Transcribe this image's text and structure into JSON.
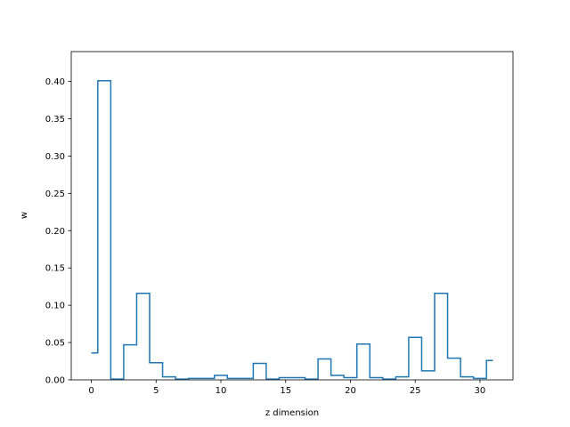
{
  "chart_data": {
    "type": "line",
    "step": "mid",
    "title": "",
    "xlabel": "z dimension",
    "ylabel": "w",
    "xlim": [
      -1.55,
      32.55
    ],
    "ylim": [
      0.0,
      0.44
    ],
    "xticks": [
      0,
      5,
      10,
      15,
      20,
      25,
      30
    ],
    "yticks": [
      0.0,
      0.05,
      0.1,
      0.15,
      0.2,
      0.25,
      0.3,
      0.35,
      0.4
    ],
    "ytick_labels": [
      "0.00",
      "0.05",
      "0.10",
      "0.15",
      "0.20",
      "0.25",
      "0.30",
      "0.35",
      "0.40"
    ],
    "grid": false,
    "color": "#1f77b4",
    "series": [
      {
        "x": [
          0,
          1,
          2,
          3,
          4,
          5,
          6,
          7,
          8,
          9,
          10,
          11,
          12,
          13,
          14,
          15,
          16,
          17,
          18,
          19,
          20,
          21,
          22,
          23,
          24,
          25,
          26,
          27,
          28,
          29,
          30,
          31
        ],
        "values": [
          0.036,
          0.401,
          0.001,
          0.047,
          0.116,
          0.023,
          0.004,
          0.001,
          0.002,
          0.002,
          0.006,
          0.002,
          0.002,
          0.022,
          0.001,
          0.003,
          0.003,
          0.001,
          0.028,
          0.006,
          0.003,
          0.048,
          0.003,
          0.001,
          0.004,
          0.057,
          0.012,
          0.116,
          0.029,
          0.004,
          0.002,
          0.026
        ]
      }
    ]
  }
}
